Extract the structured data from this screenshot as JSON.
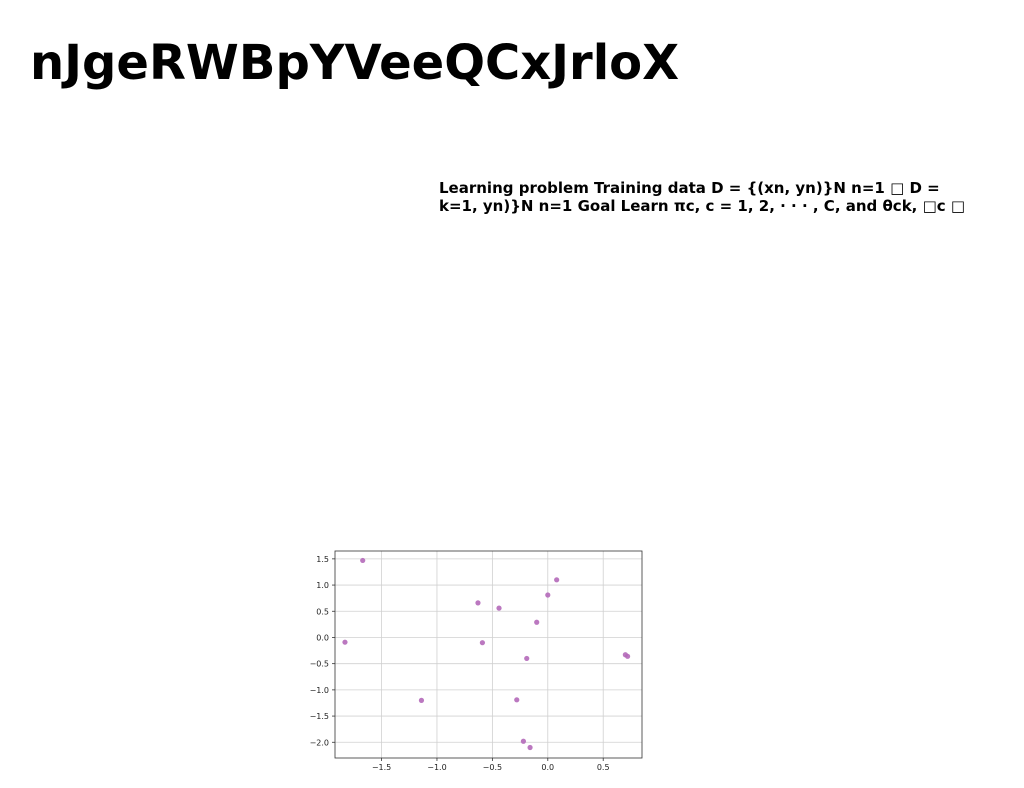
{
  "slide": {
    "title": "nJgeRWBpYVeeQCxJrloX",
    "text_lines": [
      "Learning problem Training data D = {(xn, yn)}N n=1 □ D =",
      "k=1, yn)}N n=1 Goal Learn πc, c = 1, 2, · · · , C, and θck, □c □"
    ]
  },
  "chart_data": {
    "type": "scatter",
    "x": [
      -1.67,
      -1.83,
      -1.14,
      -0.63,
      -0.59,
      -0.44,
      -0.28,
      -0.22,
      -0.19,
      -0.16,
      -0.1,
      0.0,
      0.08,
      0.7,
      0.72
    ],
    "y": [
      1.47,
      -0.09,
      -1.2,
      0.66,
      -0.1,
      0.56,
      -1.19,
      -1.98,
      -0.4,
      -2.1,
      0.29,
      0.81,
      1.1,
      -0.33,
      -0.36
    ],
    "xlim": [
      -1.92,
      0.85
    ],
    "ylim": [
      -2.3,
      1.65
    ],
    "xticks": [
      -1.5,
      -1.0,
      -0.5,
      0.0,
      0.5
    ],
    "yticks": [
      1.5,
      1.0,
      0.5,
      0.0,
      -0.5,
      -1.0,
      -1.5,
      -2.0
    ],
    "xtick_labels": [
      "−1.5",
      "−1.0",
      "−0.5",
      "0.0",
      "0.5"
    ],
    "ytick_labels": [
      "1.5",
      "1.0",
      "0.5",
      "0.0",
      "−0.5",
      "−1.0",
      "−1.5",
      "−2.0"
    ],
    "grid": true,
    "point_color": "#b469b9",
    "title": "",
    "xlabel": "",
    "ylabel": ""
  }
}
